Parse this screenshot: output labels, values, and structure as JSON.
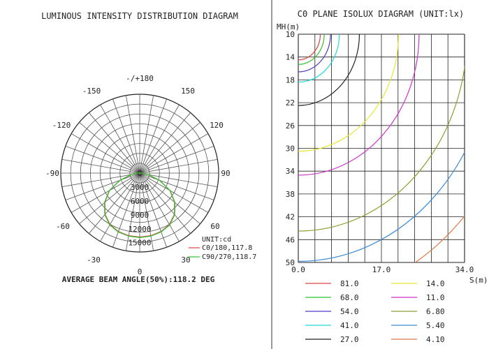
{
  "polar": {
    "title": "LUMINOUS INTENSITY DISTRIBUTION DIAGRAM",
    "angle_labels": {
      "a180": "-/+180",
      "a150": "150",
      "am150": "-150",
      "a120": "120",
      "am120": "-120",
      "a90": "90",
      "am90": "-90",
      "a60": "60",
      "am60": "-60",
      "a30": "30",
      "am30": "-30",
      "a0": "0"
    },
    "unit_label": "UNIT:cd",
    "footer": "AVERAGE BEAM ANGLE(50%):118.2 DEG",
    "chart_data": {
      "type": "polar",
      "radial_ticks": [
        0,
        3000,
        6000,
        9000,
        12000,
        15000
      ],
      "rmax": 17000,
      "series": [
        {
          "name": "C0/180,117.8",
          "color": "#e04040",
          "angles_deg": [
            0,
            10,
            20,
            30,
            40,
            50,
            60,
            70,
            80,
            90,
            100,
            120,
            140,
            160,
            180
          ],
          "values": [
            13800,
            13700,
            13400,
            12800,
            11600,
            9800,
            7500,
            4500,
            1800,
            400,
            50,
            0,
            0,
            0,
            0
          ]
        },
        {
          "name": "C90/270,118.7",
          "color": "#33c233",
          "angles_deg": [
            0,
            10,
            20,
            30,
            40,
            50,
            60,
            70,
            80,
            90,
            100,
            120,
            140,
            160,
            180
          ],
          "values": [
            13900,
            13800,
            13500,
            12900,
            11700,
            9900,
            7600,
            4600,
            1900,
            450,
            60,
            0,
            0,
            0,
            0
          ]
        }
      ]
    }
  },
  "isolux": {
    "title": "C0 PLANE ISOLUX DIAGRAM (UNIT:lx)",
    "y_axis_label": "MH(m)",
    "x_axis_label": "S(m)",
    "chart_data": {
      "type": "line",
      "x_ticks": [
        "0.0",
        "17.0",
        "34.0"
      ],
      "y_ticks": [
        "10",
        "14",
        "18",
        "22",
        "26",
        "30",
        "34",
        "38",
        "42",
        "46",
        "50"
      ],
      "xlim": [
        0,
        34
      ],
      "ylim": [
        10,
        50
      ],
      "contours": [
        {
          "value": "81.0",
          "color": "#e04040",
          "radius": 4.5
        },
        {
          "value": "68.0",
          "color": "#33c233",
          "radius": 5.3
        },
        {
          "value": "54.0",
          "color": "#4a3cc0",
          "radius": 6.6
        },
        {
          "value": "41.0",
          "color": "#22d8d8",
          "radius": 8.4
        },
        {
          "value": "27.0",
          "color": "#222222",
          "radius": 12.5
        },
        {
          "value": "14.0",
          "color": "#e8e830",
          "radius": 20.5
        },
        {
          "value": "11.0",
          "color": "#cc33cc",
          "radius": 24.7
        },
        {
          "value": "6.80",
          "color": "#8aa030",
          "radius": 34.5
        },
        {
          "value": "5.40",
          "color": "#3a8ad8",
          "radius": 39.8
        },
        {
          "value": "4.10",
          "color": "#e07840",
          "radius": 46.6
        }
      ]
    }
  }
}
